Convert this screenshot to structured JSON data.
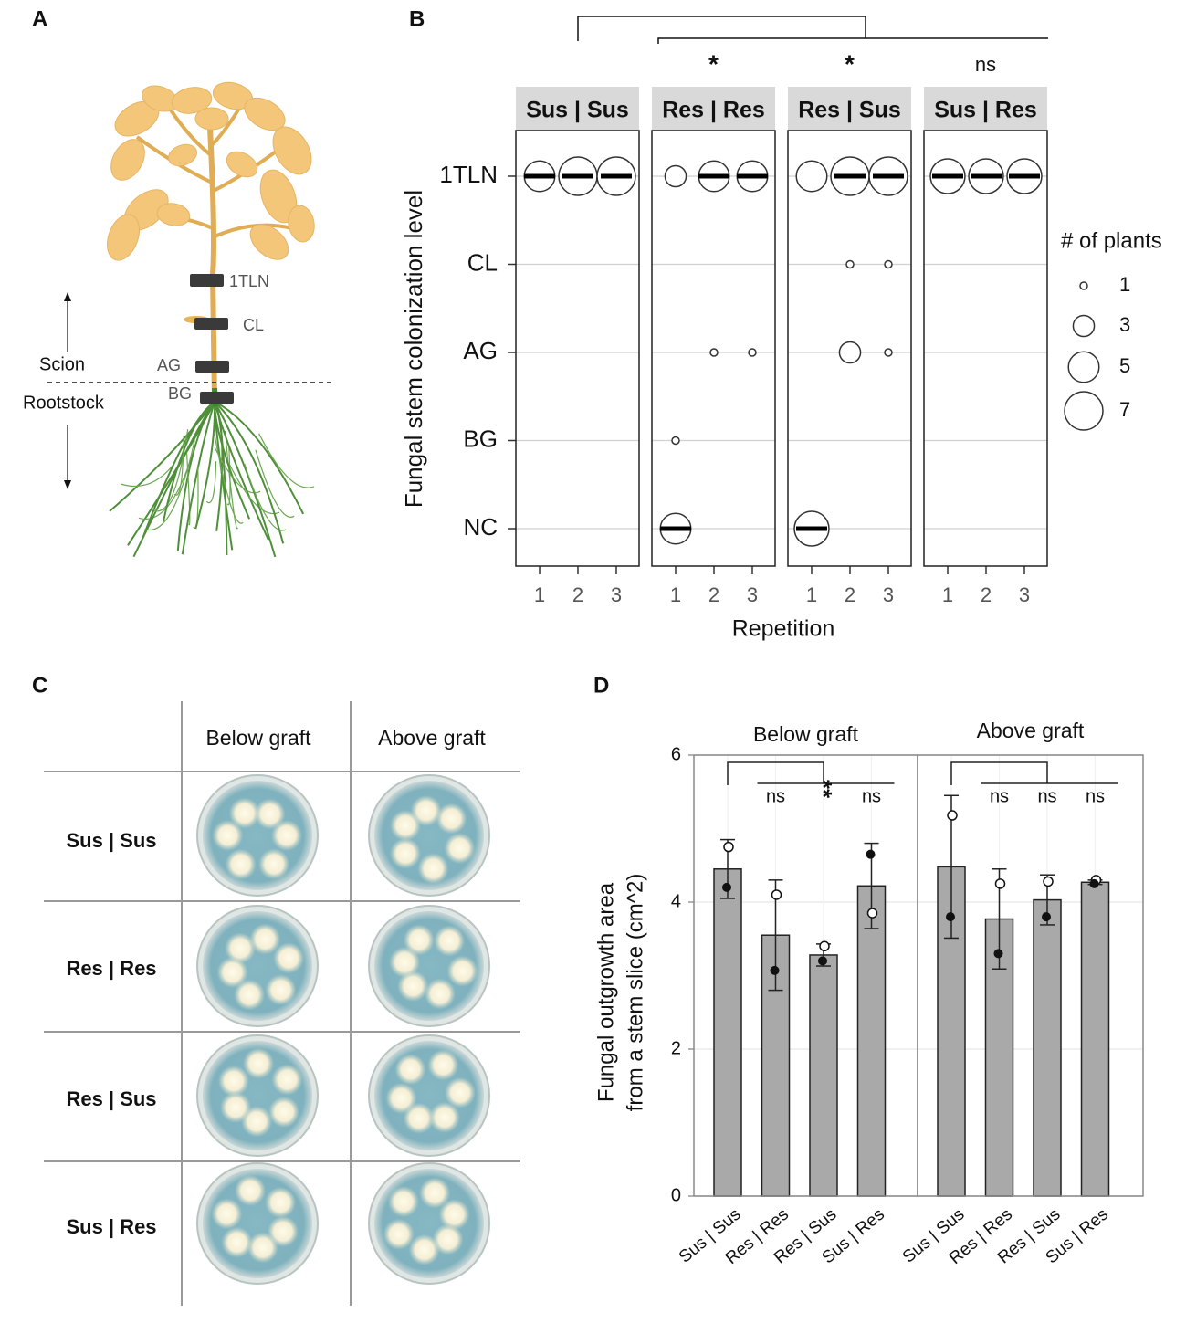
{
  "panel_labels": [
    "A",
    "B",
    "C",
    "D"
  ],
  "diagram": {
    "markers": [
      "1TLN",
      "CL",
      "AG",
      "BG"
    ],
    "scion": "Scion",
    "rootstock": "Rootstock"
  },
  "plates": {
    "columns": [
      "Below graft",
      "Above graft"
    ],
    "rows": [
      "Sus | Sus",
      "Res | Res",
      "Res | Sus",
      "Sus | Res"
    ]
  },
  "chart_data": [
    {
      "type": "bubble",
      "levels": [
        "1TLN",
        "CL",
        "AG",
        "BG",
        "NC"
      ],
      "xticks": [
        1,
        2,
        3
      ],
      "xlabel": "Repetition",
      "ylabel": "Fungal stem colonization level",
      "size_legend": {
        "title": "# of plants",
        "values": [
          1,
          3,
          5,
          7
        ]
      },
      "series": [
        {
          "name": "Sus | Sus",
          "significance": null,
          "medians": [
            "1TLN",
            "1TLN",
            "1TLN"
          ],
          "points": [
            {
              "x": 1,
              "level": "1TLN",
              "n": 5
            },
            {
              "x": 2,
              "level": "1TLN",
              "n": 7
            },
            {
              "x": 3,
              "level": "1TLN",
              "n": 7
            }
          ]
        },
        {
          "name": "Res | Res",
          "significance": "*",
          "medians": [
            "NC",
            "1TLN",
            "1TLN"
          ],
          "points": [
            {
              "x": 1,
              "level": "1TLN",
              "n": 3
            },
            {
              "x": 1,
              "level": "BG",
              "n": 1
            },
            {
              "x": 1,
              "level": "NC",
              "n": 5
            },
            {
              "x": 2,
              "level": "1TLN",
              "n": 5
            },
            {
              "x": 2,
              "level": "AG",
              "n": 1
            },
            {
              "x": 3,
              "level": "1TLN",
              "n": 5
            },
            {
              "x": 3,
              "level": "AG",
              "n": 1
            }
          ]
        },
        {
          "name": "Res | Sus",
          "significance": "*",
          "medians": [
            "NC",
            "1TLN",
            "1TLN"
          ],
          "points": [
            {
              "x": 1,
              "level": "1TLN",
              "n": 5
            },
            {
              "x": 1,
              "level": "NC",
              "n": 6
            },
            {
              "x": 2,
              "level": "1TLN",
              "n": 7
            },
            {
              "x": 2,
              "level": "CL",
              "n": 1
            },
            {
              "x": 2,
              "level": "AG",
              "n": 3
            },
            {
              "x": 3,
              "level": "1TLN",
              "n": 7
            },
            {
              "x": 3,
              "level": "CL",
              "n": 1
            },
            {
              "x": 3,
              "level": "AG",
              "n": 1
            }
          ]
        },
        {
          "name": "Sus | Res",
          "significance": "ns",
          "medians": [
            "1TLN",
            "1TLN",
            "1TLN"
          ],
          "points": [
            {
              "x": 1,
              "level": "1TLN",
              "n": 6
            },
            {
              "x": 2,
              "level": "1TLN",
              "n": 6
            },
            {
              "x": 3,
              "level": "1TLN",
              "n": 6
            }
          ]
        }
      ]
    },
    {
      "type": "bar",
      "categories": [
        "Sus | Sus",
        "Res | Res",
        "Res | Sus",
        "Sus | Res"
      ],
      "ylabel": [
        "Fungal outgrowth area",
        "from a stem slice (cm^2)"
      ],
      "ylim": [
        0,
        6
      ],
      "yticks": [
        0,
        2,
        4,
        6
      ],
      "grid": true,
      "color": "#a9a9a9",
      "series": [
        {
          "name": "Below graft",
          "values": [
            4.45,
            3.55,
            3.28,
            4.22
          ],
          "errors": [
            0.4,
            0.75,
            0.15,
            0.58
          ],
          "points_open": [
            4.75,
            4.1,
            3.4,
            3.85
          ],
          "points_filled": [
            4.2,
            3.07,
            3.2,
            4.65
          ],
          "significance": [
            "ns",
            "**",
            "ns"
          ]
        },
        {
          "name": "Above graft",
          "values": [
            4.48,
            3.77,
            4.03,
            4.27
          ],
          "errors": [
            0.97,
            0.68,
            0.34,
            0.03
          ],
          "points_open": [
            5.18,
            4.25,
            4.28,
            4.3
          ],
          "points_filled": [
            3.8,
            3.3,
            3.8,
            4.25
          ],
          "significance": [
            "ns",
            "ns",
            "ns"
          ]
        }
      ]
    }
  ]
}
